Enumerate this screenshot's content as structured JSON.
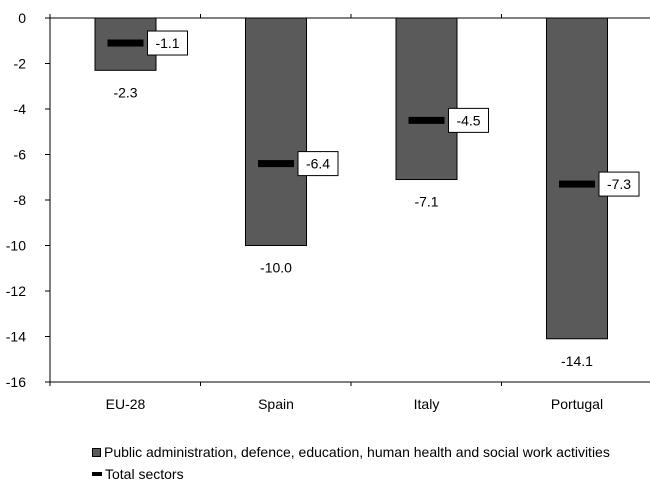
{
  "chart_data": {
    "type": "bar",
    "categories": [
      "EU-28",
      "Spain",
      "Italy",
      "Portugal"
    ],
    "series": [
      {
        "name": "Public administration, defence, education, human health and social work activities",
        "values": [
          -2.3,
          -10.0,
          -7.1,
          -14.1
        ],
        "color": "#5a5a5a"
      },
      {
        "name": "Total sectors",
        "values": [
          -1.1,
          -6.4,
          -4.5,
          -7.3
        ],
        "color": "#000000"
      }
    ],
    "bar_labels": [
      "-2.3",
      "-10.0",
      "-7.1",
      "-14.1"
    ],
    "marker_labels": [
      "-1.1",
      "-6.4",
      "-4.5",
      "-7.3"
    ],
    "y_ticks": [
      "0",
      "-2",
      "-4",
      "-6",
      "-8",
      "-10",
      "-12",
      "-14",
      "-16"
    ],
    "tick_values": [
      0,
      -2,
      -4,
      -6,
      -8,
      -10,
      -12,
      -14,
      -16
    ],
    "ylim": [
      -16,
      0
    ],
    "grid": false,
    "legend_position": "bottom"
  }
}
